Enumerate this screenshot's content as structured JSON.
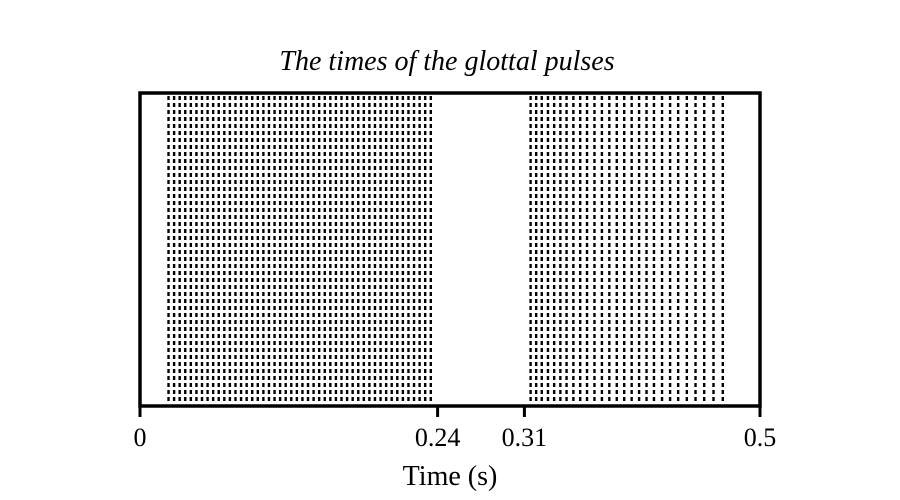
{
  "chart_data": {
    "type": "event-raster",
    "title": "The times of the glottal pulses",
    "xlabel": "Time (s)",
    "ylabel": "",
    "xlim": [
      0,
      0.5
    ],
    "xticks": [
      0,
      0.24,
      0.31,
      0.5
    ],
    "xtick_labels": [
      "0",
      "0.24",
      "0.31",
      "0.5"
    ],
    "grid": false,
    "legend": "none",
    "line_style": "dotted",
    "line_color": "#000000",
    "series": [
      {
        "values": [
          0.023,
          0.0275,
          0.032,
          0.0365,
          0.041,
          0.0455,
          0.05,
          0.0545,
          0.059,
          0.0635,
          0.068,
          0.0725,
          0.077,
          0.0815,
          0.086,
          0.0905,
          0.095,
          0.0995,
          0.104,
          0.1085,
          0.113,
          0.1175,
          0.122,
          0.1265,
          0.131,
          0.1355,
          0.14,
          0.1445,
          0.149,
          0.1535,
          0.158,
          0.1625,
          0.167,
          0.1715,
          0.176,
          0.1805,
          0.185,
          0.1895,
          0.194,
          0.1985,
          0.203,
          0.2075,
          0.212,
          0.2165,
          0.221,
          0.2255,
          0.23,
          0.2345
        ]
      },
      {
        "values": [
          0.315,
          0.3195,
          0.324,
          0.329,
          0.334,
          0.339,
          0.344,
          0.3495,
          0.355,
          0.3605,
          0.3665,
          0.3725,
          0.3785,
          0.3845,
          0.3905,
          0.3965,
          0.4025,
          0.4085,
          0.4145,
          0.421,
          0.4275,
          0.434,
          0.441,
          0.448,
          0.455,
          0.4625,
          0.47
        ]
      }
    ]
  }
}
